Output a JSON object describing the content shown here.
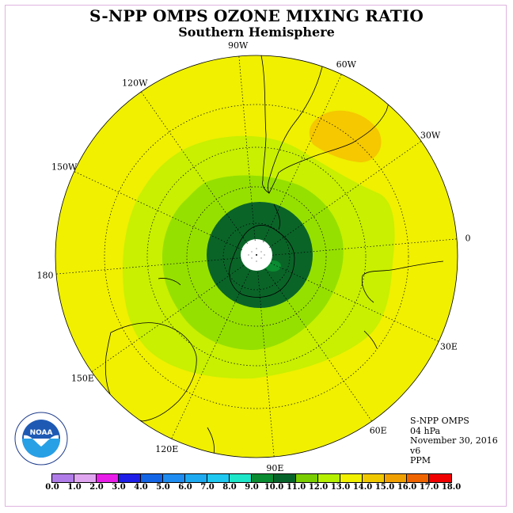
{
  "header": {
    "title": "S-NPP OMPS OZONE MIXING RATIO",
    "subtitle": "Southern Hemisphere"
  },
  "longitude_labels": [
    "90W",
    "60W",
    "30W",
    "0",
    "30E",
    "60E",
    "90E",
    "120E",
    "150E",
    "180",
    "150W",
    "120W"
  ],
  "info": {
    "instrument": "S-NPP OMPS",
    "level": "04 hPa",
    "date": "November 30, 2016",
    "version": "v6",
    "units": "PPM"
  },
  "logo": {
    "text": "NOAA"
  },
  "colorbar": {
    "ticks": [
      "0.0",
      "1.0",
      "2.0",
      "3.0",
      "4.0",
      "5.0",
      "6.0",
      "7.0",
      "8.0",
      "9.0",
      "10.0",
      "11.0",
      "12.0",
      "13.0",
      "14.0",
      "15.0",
      "16.0",
      "17.0",
      "18.0"
    ],
    "colors": [
      "#b07ce8",
      "#e0a6f0",
      "#e81ee8",
      "#1e1ee8",
      "#1464e6",
      "#1e8cf0",
      "#1eaaf0",
      "#1ec8f0",
      "#1ee6c8",
      "#0a8c32",
      "#06642a",
      "#7acd00",
      "#b4f000",
      "#f0f000",
      "#f0c800",
      "#f0a000",
      "#f06400",
      "#f00000",
      "#825a3c"
    ]
  },
  "map": {
    "projection": "south polar stereographic",
    "center_value": "polar night (no data)",
    "colors": {
      "yellow": "#f0f000",
      "light_green": "#c8f000",
      "green": "#96e000",
      "dark_green": "#0a6428",
      "orange": "#f5c800"
    }
  }
}
